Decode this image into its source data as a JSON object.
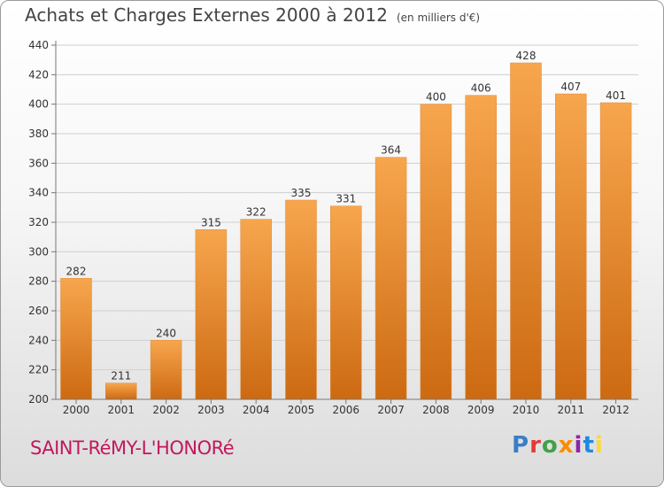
{
  "title": "Achats et Charges Externes 2000 à 2012",
  "unit": "(en milliers d'€)",
  "town": "SAINT-RéMY-L'HONORé",
  "logo": {
    "letters": [
      "P",
      "r",
      "o",
      "x",
      "i",
      "t",
      "i"
    ],
    "colors": [
      "#3a7ec8",
      "#e53935",
      "#43a047",
      "#fb8c00",
      "#8e24aa",
      "#1e88e5",
      "#fdd835"
    ]
  },
  "colors": {
    "bar_top": "#f7a64e",
    "bar_bottom": "#cc6a12",
    "title": "#444444",
    "town": "#c2185b"
  },
  "chart_data": {
    "type": "bar",
    "categories": [
      "2000",
      "2001",
      "2002",
      "2003",
      "2004",
      "2005",
      "2006",
      "2007",
      "2008",
      "2009",
      "2010",
      "2011",
      "2012"
    ],
    "values": [
      282,
      211,
      240,
      315,
      322,
      335,
      331,
      364,
      400,
      406,
      428,
      407,
      401
    ],
    "ylim": [
      200,
      440
    ],
    "yticks": [
      200,
      220,
      240,
      260,
      280,
      300,
      320,
      340,
      360,
      380,
      400,
      420,
      440
    ],
    "grid": true
  }
}
